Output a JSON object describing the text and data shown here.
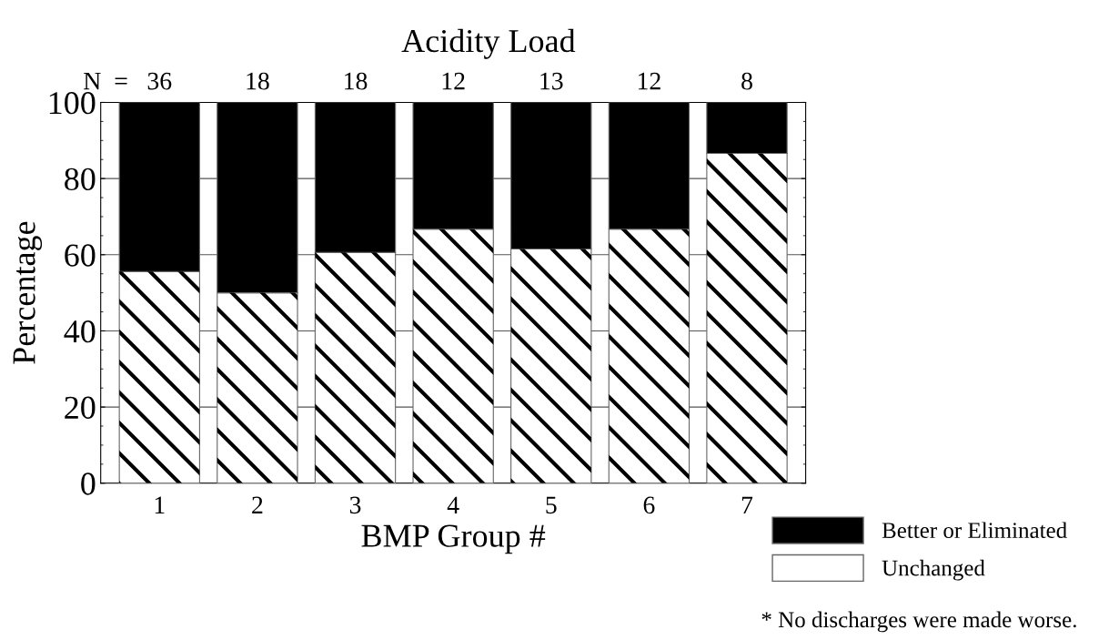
{
  "chart_data": {
    "type": "bar",
    "title": "Acidity Load",
    "xlabel": "BMP Group #",
    "ylabel": "Percentage",
    "categories": [
      "1",
      "2",
      "3",
      "4",
      "5",
      "6",
      "7"
    ],
    "stacked": true,
    "series": [
      {
        "name": "Unchanged",
        "color": "#ffffff",
        "values": [
          55.6,
          50,
          60.6,
          66.7,
          61.5,
          66.7,
          86.6
        ]
      },
      {
        "name": "Better or Eliminated",
        "color": "#000000",
        "values": [
          44.4,
          50,
          39.4,
          33.3,
          38.5,
          33.3,
          13.4
        ]
      }
    ],
    "ylim": [
      0,
      100
    ],
    "yticks": [
      0,
      20,
      40,
      60,
      80,
      100
    ],
    "grid": "y",
    "legend": "bottom right",
    "annotations": [
      "N  =",
      "36",
      "18",
      "18",
      "12",
      "13",
      "12",
      "8",
      "* No discharges were made worse."
    ]
  }
}
